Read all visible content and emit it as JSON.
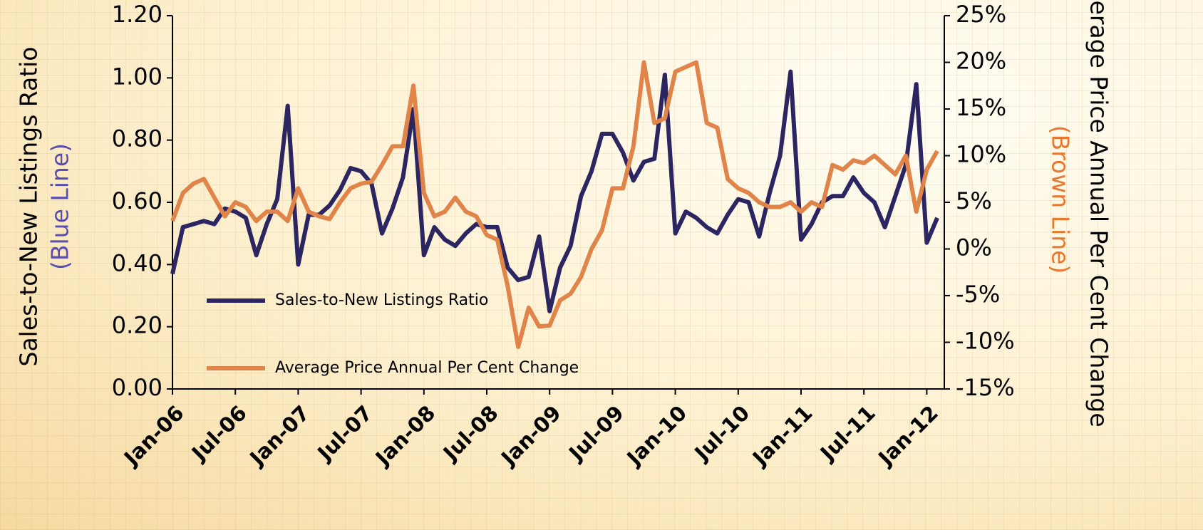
{
  "chart_data": {
    "type": "line",
    "categories": [
      "Jan-06",
      null,
      null,
      null,
      null,
      null,
      "Jul-06",
      null,
      null,
      null,
      null,
      null,
      "Jan-07",
      null,
      null,
      null,
      null,
      null,
      "Jul-07",
      null,
      null,
      null,
      null,
      null,
      "Jan-08",
      null,
      null,
      null,
      null,
      null,
      "Jul-08",
      null,
      null,
      null,
      null,
      null,
      "Jan-09",
      null,
      null,
      null,
      null,
      null,
      "Jul-09",
      null,
      null,
      null,
      null,
      null,
      "Jan-10",
      null,
      null,
      null,
      null,
      null,
      "Jul-10",
      null,
      null,
      null,
      null,
      null,
      "Jan-11",
      null,
      null,
      null,
      null,
      null,
      "Jul-11",
      null,
      null,
      null,
      null,
      null,
      "Jan-12",
      null
    ],
    "series": [
      {
        "name": "Sales-to-New Listings Ratio",
        "color": "#2b2562",
        "values": [
          0.37,
          0.52,
          0.53,
          0.54,
          0.53,
          0.58,
          0.57,
          0.55,
          0.43,
          0.53,
          0.61,
          0.91,
          0.4,
          0.56,
          0.56,
          0.59,
          0.64,
          0.71,
          0.7,
          0.66,
          0.5,
          0.58,
          0.68,
          0.9,
          0.43,
          0.52,
          0.48,
          0.46,
          0.5,
          0.53,
          0.52,
          0.52,
          0.39,
          0.35,
          0.36,
          0.49,
          0.25,
          0.39,
          0.46,
          0.62,
          0.7,
          0.82,
          0.82,
          0.76,
          0.67,
          0.73,
          0.74,
          1.01,
          0.5,
          0.57,
          0.55,
          0.52,
          0.5,
          0.56,
          0.61,
          0.6,
          0.49,
          0.63,
          0.75,
          1.02,
          0.48,
          0.53,
          0.6,
          0.62,
          0.62,
          0.68,
          0.63,
          0.6,
          0.52,
          0.62,
          0.72,
          0.98,
          0.47,
          0.55
        ]
      },
      {
        "name": "Average Price Annual Per Cent Change",
        "color": "#e0844a",
        "axis": "y2",
        "values": [
          3,
          6,
          7,
          7.5,
          5.5,
          3.5,
          5,
          4.5,
          3,
          4,
          4,
          3,
          6.5,
          4,
          3.5,
          3.2,
          5,
          6.5,
          7,
          7.2,
          9,
          11,
          11,
          17.5,
          6,
          3.5,
          4,
          5.5,
          4,
          3.5,
          1.5,
          1,
          -4,
          -10.5,
          -6.3,
          -8.3,
          -8.2,
          -5.5,
          -4.8,
          -3,
          0,
          2,
          6.5,
          6.5,
          11,
          20,
          13.5,
          14,
          19,
          19.5,
          20,
          13.5,
          13,
          7.5,
          6.5,
          6,
          5,
          4.5,
          4.5,
          5,
          4,
          5,
          4.5,
          9,
          8.5,
          9.5,
          9.2,
          10,
          9,
          8,
          10,
          4,
          8.5,
          10.5
        ]
      }
    ],
    "y_label": "Sales-to-New Listings Ratio",
    "y_sublabel": "(Blue Line)",
    "y2_label": "Average Price Annual Per Cent Change",
    "y2_sublabel": "(Brown Line)",
    "ylim": [
      0,
      1.2
    ],
    "yticks": [
      {
        "value": 0,
        "label": "0.00"
      },
      {
        "value": 0.2,
        "label": "0.20"
      },
      {
        "value": 0.4,
        "label": "0.40"
      },
      {
        "value": 0.6,
        "label": "0.60"
      },
      {
        "value": 0.8,
        "label": "0.80"
      },
      {
        "value": 1,
        "label": "1.00"
      },
      {
        "value": 1.2,
        "label": "1.20"
      }
    ],
    "y2lim": [
      -15,
      25
    ],
    "y2ticks": [
      {
        "value": -15,
        "label": "-15%"
      },
      {
        "value": -10,
        "label": "-10%"
      },
      {
        "value": -5,
        "label": "-5%"
      },
      {
        "value": 0,
        "label": "0%"
      },
      {
        "value": 5,
        "label": "5%"
      },
      {
        "value": 10,
        "label": "10%"
      },
      {
        "value": 15,
        "label": "15%"
      },
      {
        "value": 20,
        "label": "20%"
      },
      {
        "value": 25,
        "label": "25%"
      }
    ],
    "legend": "lower left"
  }
}
